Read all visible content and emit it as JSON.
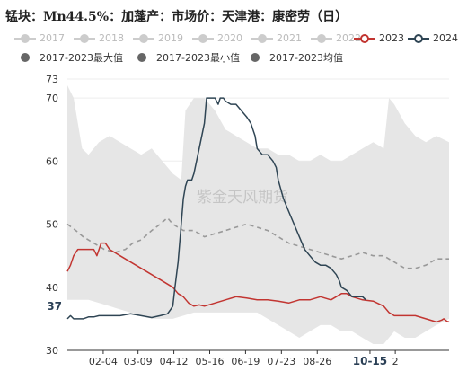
{
  "title": "锰块：Mn44.5%：加蓬产：市场价：天津港：康密劳（日）",
  "watermark": "紫金天风期货",
  "legend": [
    {
      "label": "2017",
      "color": "#cccccc",
      "active": false
    },
    {
      "label": "2018",
      "color": "#cccccc",
      "active": false
    },
    {
      "label": "2019",
      "color": "#cccccc",
      "active": false
    },
    {
      "label": "2020",
      "color": "#cccccc",
      "active": false
    },
    {
      "label": "2021",
      "color": "#cccccc",
      "active": false
    },
    {
      "label": "2022",
      "color": "#cccccc",
      "active": false
    },
    {
      "label": "2023",
      "color": "#c23531",
      "active": true
    },
    {
      "label": "2024",
      "color": "#2f4554",
      "active": true
    },
    {
      "label": "2017-2023最大值",
      "color": "#666666",
      "active": true
    },
    {
      "label": "2017-2023最小值",
      "color": "#666666",
      "active": true
    },
    {
      "label": "2017-2023均值",
      "color": "#666666",
      "active": true
    }
  ],
  "chart_data": {
    "type": "line",
    "title": "锰块：Mn44.5%：加蓬产：市场价：天津港：康密劳（日）",
    "ylim": [
      30,
      73
    ],
    "yticks": [
      30,
      40,
      50,
      60,
      70,
      73
    ],
    "y_highlight": {
      "label": "37",
      "value": 37
    },
    "x_range_days": [
      0,
      362
    ],
    "x_ticks": [
      {
        "label": "02-04",
        "day": 34
      },
      {
        "label": "03-09",
        "day": 67
      },
      {
        "label": "04-12",
        "day": 101
      },
      {
        "label": "05-16",
        "day": 135
      },
      {
        "label": "06-19",
        "day": 169
      },
      {
        "label": "07-23",
        "day": 203
      },
      {
        "label": "08-26",
        "day": 237
      },
      {
        "label": "10-15",
        "day": 287,
        "highlight": true
      },
      {
        "label": "2",
        "day": 311
      }
    ],
    "band": {
      "name": "2017-2023 range",
      "color": "#e6e6e6",
      "max": [
        [
          0,
          72
        ],
        [
          6,
          70
        ],
        [
          10,
          66
        ],
        [
          14,
          62
        ],
        [
          20,
          61
        ],
        [
          30,
          63
        ],
        [
          40,
          64
        ],
        [
          50,
          63
        ],
        [
          60,
          62
        ],
        [
          70,
          61
        ],
        [
          80,
          62
        ],
        [
          90,
          60
        ],
        [
          100,
          58
        ],
        [
          108,
          57
        ],
        [
          112,
          68
        ],
        [
          120,
          70
        ],
        [
          130,
          70
        ],
        [
          140,
          68
        ],
        [
          150,
          65
        ],
        [
          160,
          64
        ],
        [
          170,
          63
        ],
        [
          180,
          62
        ],
        [
          190,
          62
        ],
        [
          200,
          61
        ],
        [
          210,
          61
        ],
        [
          220,
          60
        ],
        [
          230,
          60
        ],
        [
          240,
          61
        ],
        [
          250,
          60
        ],
        [
          260,
          60
        ],
        [
          270,
          61
        ],
        [
          280,
          62
        ],
        [
          290,
          63
        ],
        [
          300,
          62
        ],
        [
          305,
          70
        ],
        [
          310,
          69
        ],
        [
          320,
          66
        ],
        [
          330,
          64
        ],
        [
          340,
          63
        ],
        [
          350,
          64
        ],
        [
          362,
          63
        ]
      ],
      "min": [
        [
          0,
          38
        ],
        [
          20,
          38
        ],
        [
          40,
          37
        ],
        [
          60,
          36
        ],
        [
          80,
          35
        ],
        [
          100,
          35
        ],
        [
          120,
          36
        ],
        [
          140,
          36
        ],
        [
          160,
          36
        ],
        [
          180,
          36
        ],
        [
          190,
          35
        ],
        [
          200,
          34
        ],
        [
          210,
          33
        ],
        [
          220,
          32
        ],
        [
          230,
          33
        ],
        [
          240,
          34
        ],
        [
          250,
          34
        ],
        [
          260,
          33
        ],
        [
          270,
          33
        ],
        [
          280,
          32
        ],
        [
          290,
          31
        ],
        [
          300,
          31
        ],
        [
          310,
          33
        ],
        [
          320,
          32
        ],
        [
          330,
          32
        ],
        [
          340,
          33
        ],
        [
          350,
          34
        ],
        [
          362,
          35
        ]
      ]
    },
    "series": [
      {
        "name": "2017-2023均值",
        "color": "#999999",
        "dashed": true,
        "points": [
          [
            0,
            50
          ],
          [
            8,
            49
          ],
          [
            15,
            48
          ],
          [
            25,
            47
          ],
          [
            35,
            46
          ],
          [
            45,
            45.5
          ],
          [
            55,
            46
          ],
          [
            62,
            47
          ],
          [
            70,
            47.5
          ],
          [
            80,
            49
          ],
          [
            88,
            50
          ],
          [
            95,
            51
          ],
          [
            100,
            50
          ],
          [
            110,
            49
          ],
          [
            120,
            49
          ],
          [
            130,
            48
          ],
          [
            140,
            48.5
          ],
          [
            150,
            49
          ],
          [
            160,
            49.5
          ],
          [
            170,
            50
          ],
          [
            180,
            49.5
          ],
          [
            190,
            49
          ],
          [
            200,
            48
          ],
          [
            210,
            47
          ],
          [
            220,
            46.5
          ],
          [
            230,
            46
          ],
          [
            240,
            45.5
          ],
          [
            250,
            45
          ],
          [
            260,
            44.5
          ],
          [
            270,
            45
          ],
          [
            280,
            45.5
          ],
          [
            290,
            45
          ],
          [
            300,
            45
          ],
          [
            310,
            44
          ],
          [
            320,
            43
          ],
          [
            330,
            43
          ],
          [
            340,
            43.5
          ],
          [
            350,
            44.5
          ],
          [
            362,
            44.5
          ]
        ]
      },
      {
        "name": "2023",
        "color": "#c23531",
        "dashed": false,
        "points": [
          [
            0,
            42.5
          ],
          [
            3,
            43.5
          ],
          [
            6,
            45
          ],
          [
            10,
            46
          ],
          [
            15,
            46
          ],
          [
            20,
            46
          ],
          [
            25,
            46
          ],
          [
            28,
            45
          ],
          [
            32,
            47
          ],
          [
            36,
            47
          ],
          [
            40,
            46
          ],
          [
            50,
            45
          ],
          [
            60,
            44
          ],
          [
            70,
            43
          ],
          [
            80,
            42
          ],
          [
            90,
            41
          ],
          [
            100,
            40
          ],
          [
            105,
            39
          ],
          [
            110,
            38.5
          ],
          [
            115,
            37.5
          ],
          [
            120,
            37
          ],
          [
            125,
            37.2
          ],
          [
            130,
            37
          ],
          [
            140,
            37.5
          ],
          [
            150,
            38
          ],
          [
            160,
            38.5
          ],
          [
            170,
            38.3
          ],
          [
            180,
            38
          ],
          [
            190,
            38
          ],
          [
            200,
            37.8
          ],
          [
            210,
            37.5
          ],
          [
            220,
            38
          ],
          [
            230,
            38
          ],
          [
            240,
            38.5
          ],
          [
            250,
            38
          ],
          [
            255,
            38.5
          ],
          [
            260,
            39
          ],
          [
            265,
            39
          ],
          [
            270,
            38.5
          ],
          [
            280,
            38
          ],
          [
            290,
            37.8
          ],
          [
            300,
            37
          ],
          [
            305,
            36
          ],
          [
            310,
            35.5
          ],
          [
            320,
            35.5
          ],
          [
            330,
            35.5
          ],
          [
            340,
            35
          ],
          [
            350,
            34.5
          ],
          [
            355,
            34.8
          ],
          [
            357,
            35
          ],
          [
            360,
            34.6
          ],
          [
            362,
            34.5
          ]
        ]
      },
      {
        "name": "2024",
        "color": "#2f4554",
        "dashed": false,
        "points": [
          [
            0,
            35
          ],
          [
            3,
            35.5
          ],
          [
            6,
            35
          ],
          [
            15,
            35
          ],
          [
            20,
            35.3
          ],
          [
            25,
            35.3
          ],
          [
            30,
            35.5
          ],
          [
            40,
            35.5
          ],
          [
            50,
            35.5
          ],
          [
            60,
            35.8
          ],
          [
            70,
            35.5
          ],
          [
            80,
            35.2
          ],
          [
            88,
            35.5
          ],
          [
            95,
            35.8
          ],
          [
            98,
            36.5
          ],
          [
            100,
            37
          ],
          [
            102,
            40
          ],
          [
            105,
            44
          ],
          [
            108,
            50
          ],
          [
            110,
            54
          ],
          [
            112,
            56
          ],
          [
            114,
            57
          ],
          [
            118,
            57
          ],
          [
            120,
            58
          ],
          [
            125,
            62
          ],
          [
            130,
            66
          ],
          [
            132,
            70
          ],
          [
            135,
            70
          ],
          [
            140,
            70
          ],
          [
            143,
            69
          ],
          [
            145,
            70
          ],
          [
            148,
            70
          ],
          [
            150,
            69.5
          ],
          [
            155,
            69
          ],
          [
            160,
            69
          ],
          [
            165,
            68
          ],
          [
            170,
            67
          ],
          [
            174,
            66
          ],
          [
            176,
            65
          ],
          [
            178,
            64
          ],
          [
            180,
            62
          ],
          [
            185,
            61
          ],
          [
            190,
            61
          ],
          [
            195,
            60
          ],
          [
            198,
            59
          ],
          [
            200,
            57
          ],
          [
            205,
            54
          ],
          [
            210,
            52
          ],
          [
            215,
            50
          ],
          [
            220,
            48
          ],
          [
            225,
            46
          ],
          [
            230,
            45
          ],
          [
            235,
            44
          ],
          [
            240,
            43.5
          ],
          [
            245,
            43.5
          ],
          [
            250,
            43
          ],
          [
            255,
            42
          ],
          [
            258,
            41
          ],
          [
            260,
            40
          ],
          [
            265,
            39.5
          ],
          [
            270,
            38.5
          ],
          [
            275,
            38.5
          ],
          [
            280,
            38.5
          ],
          [
            283,
            38
          ]
        ]
      }
    ]
  }
}
